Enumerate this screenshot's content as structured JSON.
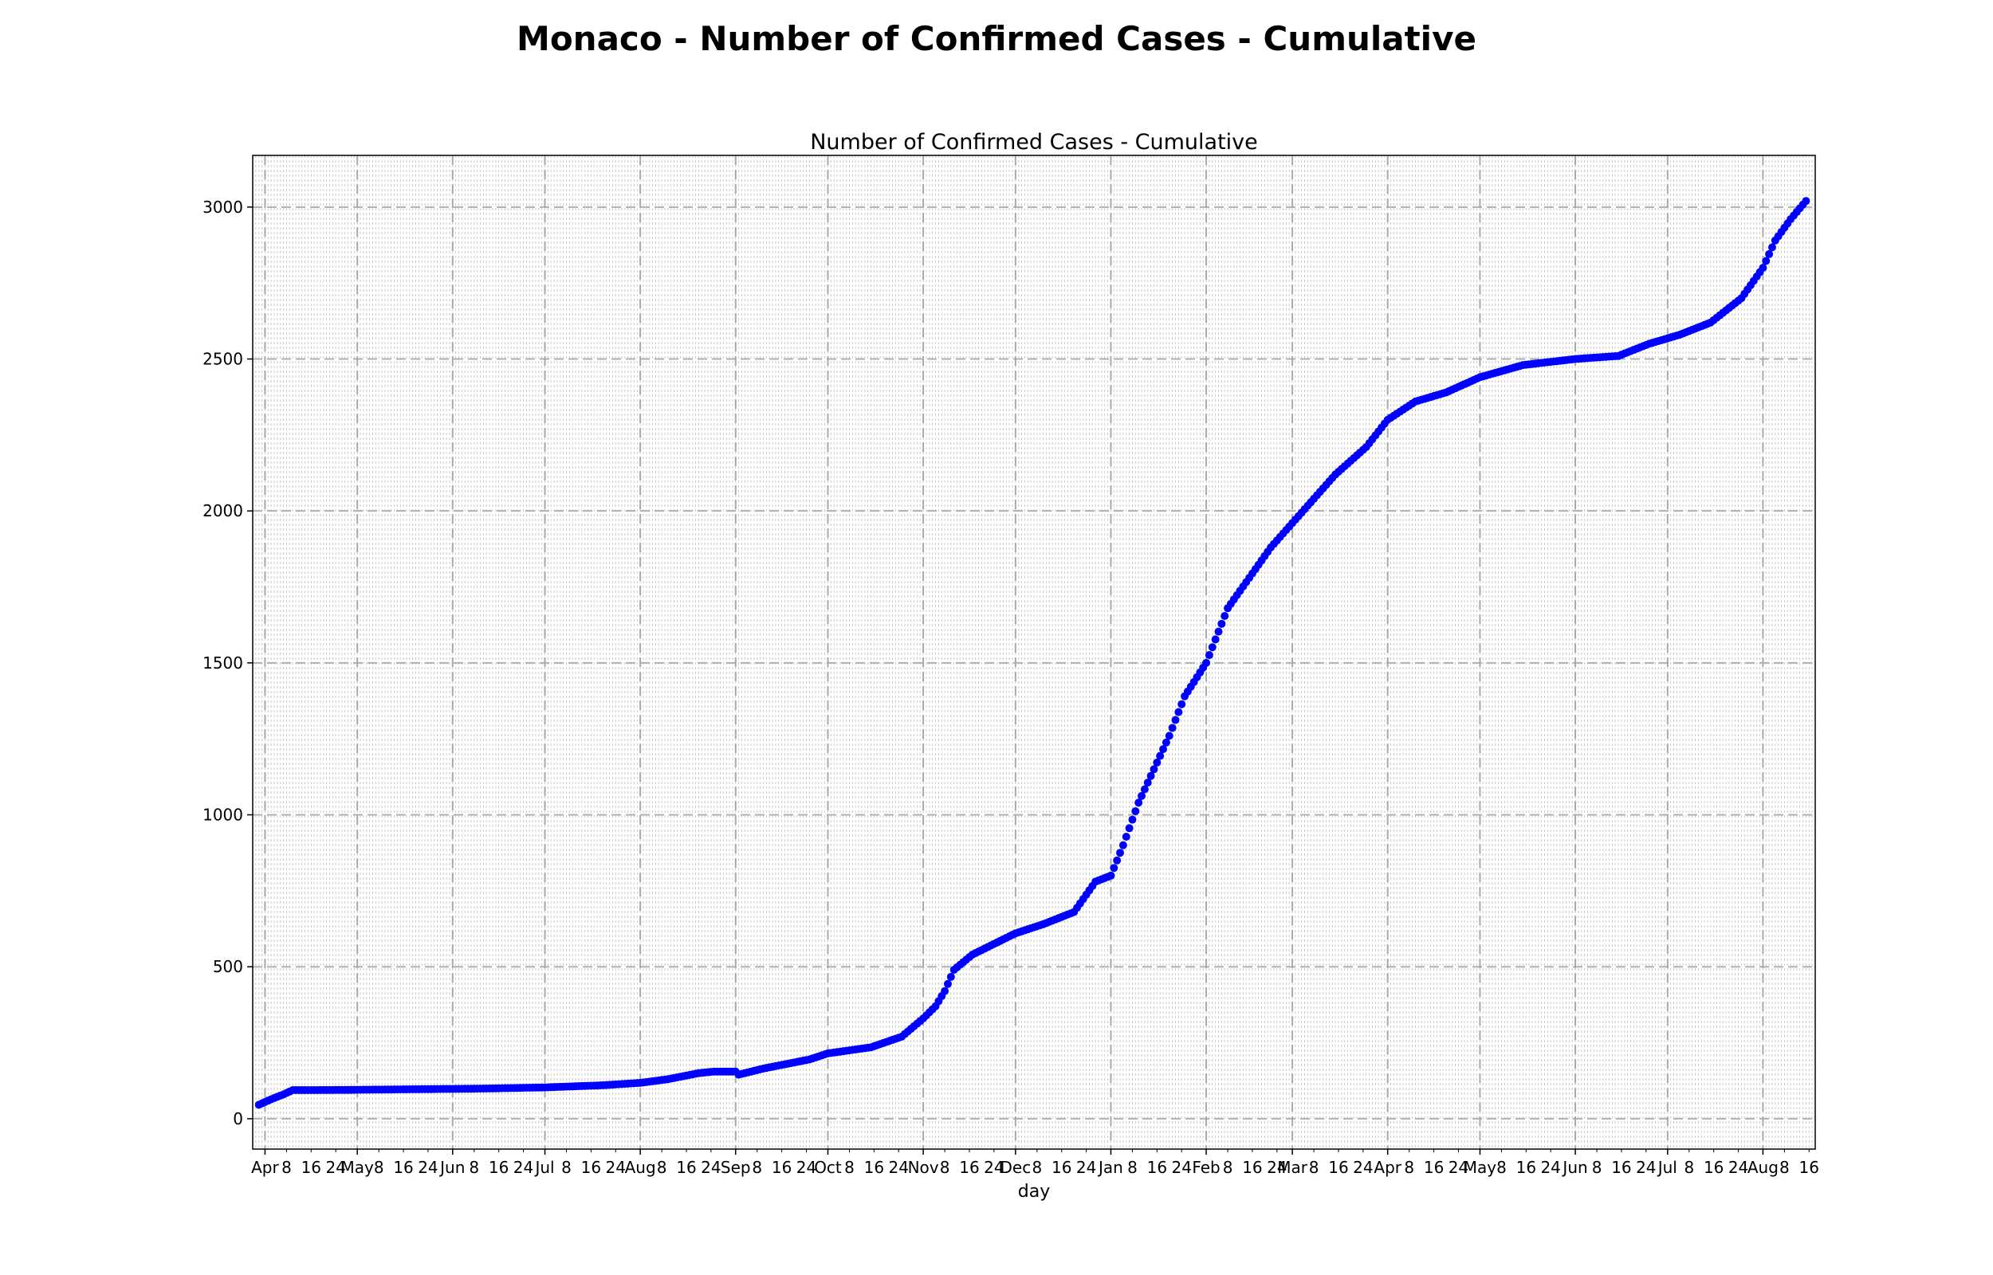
{
  "suptitle": "Monaco - Number of Confirmed Cases - Cumulative",
  "chart_data": {
    "type": "scatter",
    "title": "Number of Confirmed Cases - Cumulative",
    "xlabel": "day",
    "ylabel": "",
    "x_range": [
      "2020-03-28",
      "2021-08-18"
    ],
    "ylim": [
      -100,
      3170
    ],
    "y_ticks": [
      0,
      500,
      1000,
      1500,
      2000,
      2500,
      3000
    ],
    "x_major_ticks": [
      {
        "date": "2020-04-01",
        "label": "Apr"
      },
      {
        "date": "2020-05-01",
        "label": "May"
      },
      {
        "date": "2020-06-01",
        "label": "Jun"
      },
      {
        "date": "2020-07-01",
        "label": "Jul"
      },
      {
        "date": "2020-08-01",
        "label": "Aug"
      },
      {
        "date": "2020-09-01",
        "label": "Sep"
      },
      {
        "date": "2020-10-01",
        "label": "Oct"
      },
      {
        "date": "2020-11-01",
        "label": "Nov"
      },
      {
        "date": "2020-12-01",
        "label": "Dec"
      },
      {
        "date": "2021-01-01",
        "label": "Jan"
      },
      {
        "date": "2021-02-01",
        "label": "Feb"
      },
      {
        "date": "2021-03-01",
        "label": "Mar"
      },
      {
        "date": "2021-04-01",
        "label": "Apr"
      },
      {
        "date": "2021-05-01",
        "label": "May"
      },
      {
        "date": "2021-06-01",
        "label": "Jun"
      },
      {
        "date": "2021-07-01",
        "label": "Jul"
      },
      {
        "date": "2021-08-01",
        "label": "Aug"
      }
    ],
    "x_minor_tick_days": [
      8,
      16,
      24
    ],
    "grid": true,
    "marker_color": "#0000ff",
    "series": [
      {
        "points": [
          [
            "2020-03-30",
            46
          ],
          [
            "2020-04-03",
            64
          ],
          [
            "2020-04-07",
            80
          ],
          [
            "2020-04-10",
            94
          ],
          [
            "2020-04-15",
            94
          ],
          [
            "2020-05-01",
            95
          ],
          [
            "2020-05-20",
            97
          ],
          [
            "2020-06-10",
            99
          ],
          [
            "2020-07-01",
            103
          ],
          [
            "2020-07-20",
            110
          ],
          [
            "2020-08-01",
            118
          ],
          [
            "2020-08-10",
            130
          ],
          [
            "2020-08-20",
            150
          ],
          [
            "2020-08-25",
            155
          ],
          [
            "2020-09-01",
            155
          ],
          [
            "2020-09-02",
            145
          ],
          [
            "2020-09-10",
            165
          ],
          [
            "2020-09-25",
            195
          ],
          [
            "2020-10-01",
            215
          ],
          [
            "2020-10-15",
            235
          ],
          [
            "2020-10-25",
            270
          ],
          [
            "2020-11-01",
            330
          ],
          [
            "2020-11-05",
            370
          ],
          [
            "2020-11-08",
            420
          ],
          [
            "2020-11-11",
            490
          ],
          [
            "2020-11-17",
            540
          ],
          [
            "2020-11-25",
            580
          ],
          [
            "2020-12-01",
            610
          ],
          [
            "2020-12-10",
            640
          ],
          [
            "2020-12-20",
            680
          ],
          [
            "2020-12-27",
            780
          ],
          [
            "2021-01-01",
            800
          ],
          [
            "2021-01-05",
            900
          ],
          [
            "2021-01-10",
            1040
          ],
          [
            "2021-01-15",
            1150
          ],
          [
            "2021-01-20",
            1260
          ],
          [
            "2021-01-25",
            1390
          ],
          [
            "2021-02-01",
            1500
          ],
          [
            "2021-02-08",
            1680
          ],
          [
            "2021-02-15",
            1780
          ],
          [
            "2021-02-22",
            1880
          ],
          [
            "2021-03-01",
            1960
          ],
          [
            "2021-03-08",
            2040
          ],
          [
            "2021-03-15",
            2120
          ],
          [
            "2021-03-25",
            2210
          ],
          [
            "2021-04-01",
            2300
          ],
          [
            "2021-04-10",
            2360
          ],
          [
            "2021-04-20",
            2390
          ],
          [
            "2021-05-01",
            2440
          ],
          [
            "2021-05-15",
            2480
          ],
          [
            "2021-06-01",
            2500
          ],
          [
            "2021-06-15",
            2510
          ],
          [
            "2021-06-25",
            2550
          ],
          [
            "2021-07-05",
            2580
          ],
          [
            "2021-07-15",
            2620
          ],
          [
            "2021-07-25",
            2700
          ],
          [
            "2021-08-01",
            2800
          ],
          [
            "2021-08-05",
            2890
          ],
          [
            "2021-08-10",
            2960
          ],
          [
            "2021-08-15",
            3020
          ]
        ]
      }
    ]
  }
}
